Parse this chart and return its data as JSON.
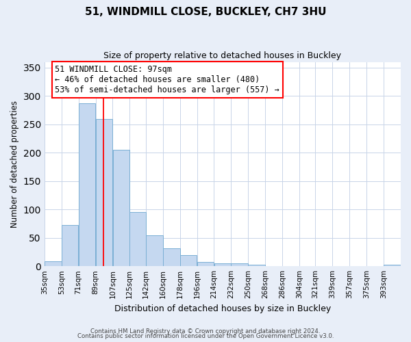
{
  "title": "51, WINDMILL CLOSE, BUCKLEY, CH7 3HU",
  "subtitle": "Size of property relative to detached houses in Buckley",
  "xlabel": "Distribution of detached houses by size in Buckley",
  "ylabel": "Number of detached properties",
  "bar_labels": [
    "35sqm",
    "53sqm",
    "71sqm",
    "89sqm",
    "107sqm",
    "125sqm",
    "142sqm",
    "160sqm",
    "178sqm",
    "196sqm",
    "214sqm",
    "232sqm",
    "250sqm",
    "268sqm",
    "286sqm",
    "304sqm",
    "321sqm",
    "339sqm",
    "357sqm",
    "375sqm",
    "393sqm"
  ],
  "bar_values": [
    9,
    73,
    287,
    260,
    205,
    96,
    54,
    31,
    20,
    7,
    5,
    5,
    3,
    0,
    0,
    0,
    0,
    0,
    0,
    0,
    3
  ],
  "bar_color": "#c5d8f0",
  "bar_edge_color": "#7aafd4",
  "vline_x": 97,
  "bin_edges": [
    35,
    53,
    71,
    89,
    107,
    125,
    142,
    160,
    178,
    196,
    214,
    232,
    250,
    268,
    286,
    304,
    321,
    339,
    357,
    375,
    393,
    411
  ],
  "ylim": [
    0,
    360
  ],
  "yticks": [
    0,
    50,
    100,
    150,
    200,
    250,
    300,
    350
  ],
  "annotation_line1": "51 WINDMILL CLOSE: 97sqm",
  "annotation_line2": "← 46% of detached houses are smaller (480)",
  "annotation_line3": "53% of semi-detached houses are larger (557) →",
  "annotation_box_color": "white",
  "annotation_box_edge_color": "red",
  "footer_line1": "Contains HM Land Registry data © Crown copyright and database right 2024.",
  "footer_line2": "Contains public sector information licensed under the Open Government Licence v3.0.",
  "background_color": "#e8eef8",
  "plot_bg_color": "#ffffff",
  "grid_color": "#c8d4e8"
}
